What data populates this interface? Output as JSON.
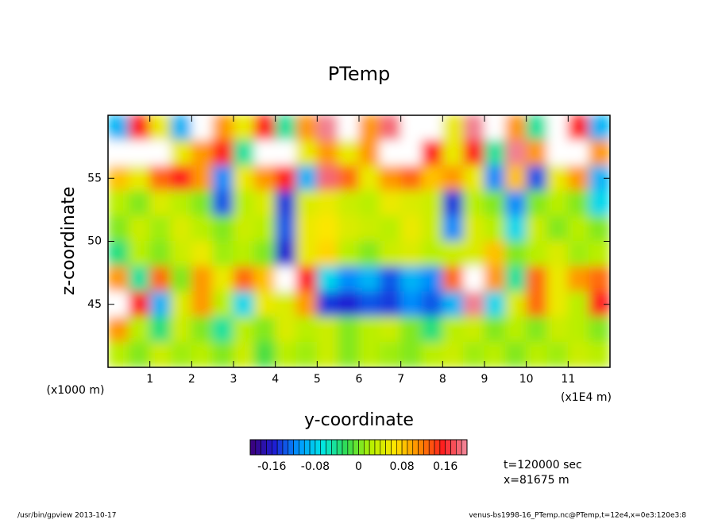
{
  "chart_data": {
    "type": "heatmap",
    "title": "PTemp",
    "x_label": "y-coordinate",
    "y_label": "z-coordinate",
    "x_unit": "(x1E4 m)",
    "y_unit": "(x1000 m)",
    "annotations": [
      "t=120000 sec",
      "x=81675 m"
    ],
    "footer_left": "/usr/bin/gpview  2013-10-17",
    "footer_right": "venus-bs1998-16_PTemp.nc@PTemp,t=12e4,x=0e3:120e3:8",
    "xlim": [
      0,
      12
    ],
    "xticks": [
      1,
      2,
      3,
      4,
      5,
      6,
      7,
      8,
      9,
      10,
      11
    ],
    "ylim": [
      40,
      60
    ],
    "yticks": [
      45,
      50,
      55
    ],
    "x": [
      0.25,
      0.75,
      1.25,
      1.75,
      2.25,
      2.75,
      3.25,
      3.75,
      4.25,
      4.75,
      5.25,
      5.75,
      6.25,
      6.75,
      7.25,
      7.75,
      8.25,
      8.75,
      9.25,
      9.75,
      10.25,
      10.75,
      11.25,
      11.75
    ],
    "y": [
      59,
      57,
      55,
      53,
      51,
      49,
      47,
      45,
      43,
      41
    ],
    "values": [
      [
        -0.1,
        0.15,
        0.05,
        -0.1,
        0.22,
        0.1,
        0.05,
        0.15,
        -0.05,
        0.1,
        0.2,
        0.25,
        0.1,
        0.18,
        0.25,
        0.22,
        0.05,
        0.2,
        0.22,
        0.1,
        -0.05,
        0.22,
        0.15,
        -0.1
      ],
      [
        0.22,
        0.22,
        0.21,
        0.05,
        0.1,
        0.15,
        -0.05,
        0.22,
        0.21,
        0.05,
        0.1,
        0.05,
        0.1,
        0.23,
        0.22,
        0.15,
        0.05,
        0.15,
        -0.05,
        0.2,
        0.1,
        0.22,
        0.23,
        0.1
      ],
      [
        0.08,
        0.05,
        0.12,
        0.15,
        0.1,
        -0.12,
        0.05,
        0.1,
        0.15,
        -0.1,
        0.18,
        0.12,
        0.05,
        0.1,
        0.12,
        0.08,
        0.1,
        0.05,
        -0.12,
        0.08,
        -0.14,
        0.05,
        0.1,
        -0.1
      ],
      [
        0.02,
        0,
        0.04,
        0.02,
        0,
        -0.14,
        0.02,
        0.04,
        -0.15,
        0.04,
        0.05,
        0.03,
        0.02,
        0.05,
        0.04,
        0.03,
        -0.15,
        0.02,
        0,
        -0.12,
        0,
        0.02,
        0,
        -0.08
      ],
      [
        0,
        0.03,
        0.01,
        0.04,
        0.02,
        0,
        0.03,
        0.02,
        -0.14,
        0.05,
        0.06,
        0.04,
        0.03,
        0.02,
        0.05,
        0.03,
        -0.12,
        0.04,
        0.02,
        -0.08,
        0.03,
        0,
        0.02,
        0
      ],
      [
        -0.04,
        0.02,
        0,
        0.03,
        0.05,
        0.01,
        0.02,
        0,
        -0.16,
        0.05,
        0.07,
        0.02,
        0,
        0.03,
        0.04,
        0.02,
        0.03,
        0.04,
        0.08,
        0,
        0.02,
        0.04,
        0.01,
        0.02
      ],
      [
        0.1,
        -0.05,
        0.12,
        0,
        0.1,
        0.05,
        0.12,
        0.08,
        0.22,
        0.15,
        -0.08,
        -0.12,
        -0.1,
        -0.14,
        -0.1,
        -0.12,
        0.12,
        0.22,
        0.1,
        -0.05,
        0.12,
        0.05,
        0.1,
        0.12
      ],
      [
        0.22,
        0.15,
        -0.1,
        0.04,
        0.1,
        0.02,
        -0.08,
        0.05,
        0.04,
        0.1,
        -0.15,
        -0.16,
        -0.14,
        -0.15,
        -0.12,
        -0.14,
        -0.1,
        0.2,
        -0.08,
        0.04,
        0.12,
        0.05,
        0.02,
        0.15
      ],
      [
        0.1,
        0.02,
        -0.04,
        0.03,
        0,
        -0.05,
        0.02,
        0,
        0.04,
        0.02,
        0.03,
        0,
        0.02,
        0.03,
        0,
        -0.04,
        0.02,
        0.03,
        0,
        0.02,
        0,
        0.03,
        0.02,
        0
      ],
      [
        0.02,
        0,
        0.03,
        0.01,
        0.02,
        0,
        0.03,
        -0.02,
        0.02,
        0.01,
        0.03,
        0,
        0.02,
        0.01,
        0,
        0.02,
        0.03,
        0.01,
        0.02,
        0,
        0.02,
        0.01,
        0.03,
        0.02
      ]
    ],
    "colorbar": {
      "lim": [
        -0.2,
        0.2
      ],
      "step": 0.01,
      "ticks": [
        -0.16,
        -0.08,
        0,
        0.08,
        0.16
      ]
    },
    "colormap": [
      "#3c0078",
      "#1e1ed2",
      "#0096ff",
      "#00e6e6",
      "#32dc50",
      "#b4f000",
      "#ffe600",
      "#ff8c00",
      "#ff1e1e",
      "#f08ca0"
    ],
    "over_color": "#ffffff"
  }
}
